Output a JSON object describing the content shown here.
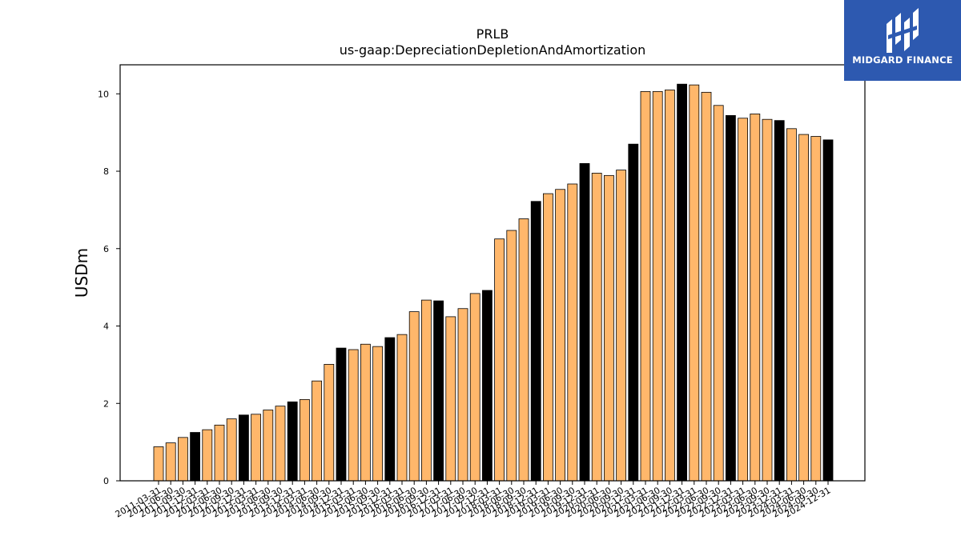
{
  "chart_data": {
    "type": "bar",
    "title": "PRLB",
    "subtitle": "us-gaap:DepreciationDepletionAndAmortization",
    "xlabel": "",
    "ylabel": "USDm",
    "ylim": [
      0,
      10.75
    ],
    "yticks": [
      0,
      2,
      4,
      6,
      8,
      10
    ],
    "grid": false,
    "colors": {
      "quarter": "#ffb76b",
      "year_end": "#000000",
      "edge": "#000000"
    },
    "categories": [
      "2011-03-31",
      "2011-06-30",
      "2011-09-30",
      "2011-12-31",
      "2012-03-31",
      "2012-06-30",
      "2012-09-30",
      "2012-12-31",
      "2013-03-31",
      "2013-06-30",
      "2013-09-30",
      "2013-12-31",
      "2014-03-31",
      "2014-06-30",
      "2014-09-30",
      "2014-12-31",
      "2015-03-31",
      "2015-06-30",
      "2015-09-30",
      "2015-12-31",
      "2016-03-31",
      "2016-06-30",
      "2016-09-30",
      "2016-12-31",
      "2017-03-31",
      "2017-06-30",
      "2017-09-30",
      "2017-12-31",
      "2018-03-31",
      "2018-06-30",
      "2018-09-30",
      "2018-12-31",
      "2019-03-31",
      "2019-06-30",
      "2019-09-30",
      "2019-12-31",
      "2020-03-31",
      "2020-06-30",
      "2020-09-30",
      "2020-12-31",
      "2021-03-31",
      "2021-06-30",
      "2021-09-30",
      "2021-12-31",
      "2022-03-31",
      "2022-06-30",
      "2022-09-30",
      "2022-12-31",
      "2023-03-31",
      "2023-06-30",
      "2023-09-30",
      "2023-12-31",
      "2024-03-31",
      "2024-06-30",
      "2024-09-30",
      "2024-12-31"
    ],
    "values": [
      0.88,
      0.98,
      1.12,
      1.25,
      1.32,
      1.44,
      1.6,
      1.7,
      1.72,
      1.83,
      1.93,
      2.04,
      2.1,
      2.58,
      3.01,
      3.43,
      3.39,
      3.53,
      3.47,
      3.7,
      3.78,
      4.37,
      4.67,
      4.65,
      4.24,
      4.45,
      4.84,
      4.92,
      6.25,
      6.47,
      6.77,
      7.22,
      7.42,
      7.53,
      7.67,
      8.2,
      7.95,
      7.89,
      8.03,
      8.7,
      10.06,
      10.06,
      10.1,
      10.25,
      10.23,
      10.04,
      9.7,
      9.44,
      9.37,
      9.48,
      9.34,
      9.31,
      9.1,
      8.95,
      8.9,
      8.81
    ],
    "year_end": [
      false,
      false,
      false,
      true,
      false,
      false,
      false,
      true,
      false,
      false,
      false,
      true,
      false,
      false,
      false,
      true,
      false,
      false,
      false,
      true,
      false,
      false,
      false,
      true,
      false,
      false,
      false,
      true,
      false,
      false,
      false,
      true,
      false,
      false,
      false,
      true,
      false,
      false,
      false,
      true,
      false,
      false,
      false,
      true,
      false,
      false,
      false,
      true,
      false,
      false,
      false,
      true,
      false,
      false,
      false,
      true
    ]
  },
  "logo": {
    "brand": "MIDGARD FINANCE",
    "icon": "midgard-logo-icon"
  }
}
